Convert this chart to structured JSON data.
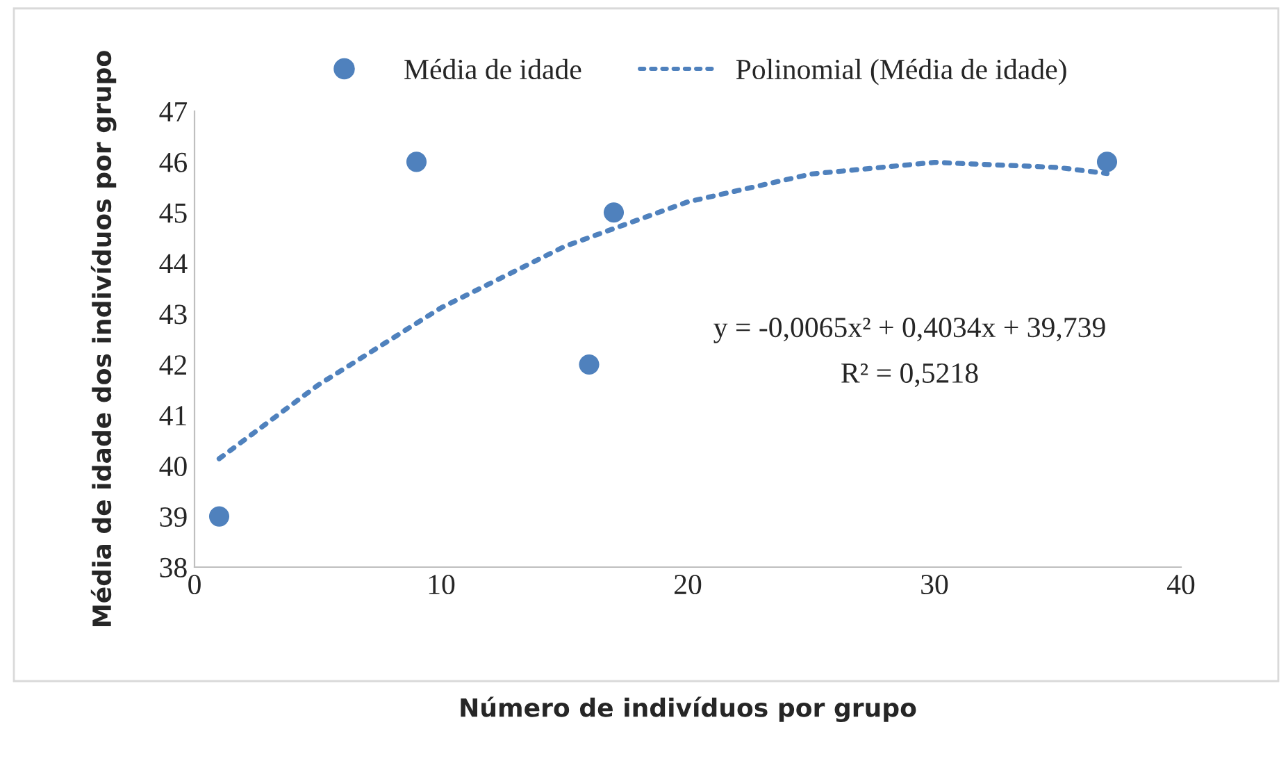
{
  "chart_data": {
    "type": "scatter",
    "xlabel": "Número de indivíduos por grupo",
    "ylabel": "Média de idade dos indivíduos por grupo",
    "series": [
      {
        "name": "Média de idade",
        "color": "#4f81bd",
        "marker": "circle",
        "x": [
          1,
          9,
          16,
          17,
          37
        ],
        "values": [
          39,
          46,
          42,
          45,
          46
        ]
      },
      {
        "name": "Polinomial (Média de idade)",
        "type": "line",
        "color": "#4f81bd",
        "line_style": "dotted",
        "x": [
          1,
          5,
          10,
          15,
          20,
          25,
          30,
          35,
          37
        ],
        "values": [
          40.14,
          41.59,
          43.12,
          44.33,
          45.21,
          45.76,
          45.99,
          45.89,
          45.77
        ]
      }
    ],
    "annotations": [
      "y = -0,0065x² + 0,4034x + 39,739",
      "R² = 0,5218"
    ],
    "xlim": [
      0,
      40
    ],
    "xticks": [
      0,
      10,
      20,
      30,
      40
    ],
    "ylim": [
      38,
      47
    ],
    "yticks": [
      38,
      39,
      40,
      41,
      42,
      43,
      44,
      45,
      46,
      47
    ],
    "grid": false,
    "legend": "top"
  }
}
